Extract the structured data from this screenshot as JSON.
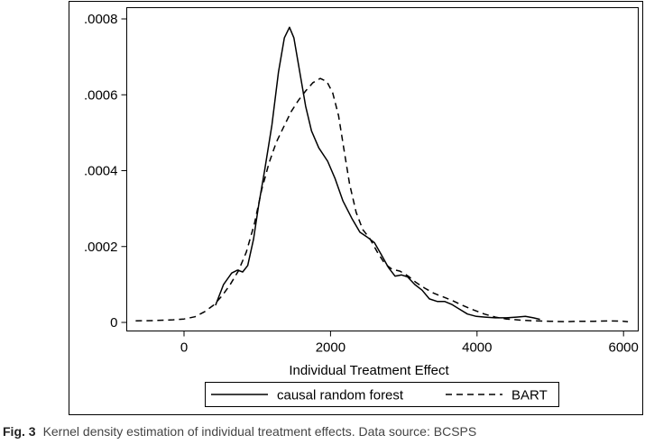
{
  "caption": {
    "label": "Fig. 3",
    "text": "Kernel density estimation of individual treatment effects. Data source: BCSPS"
  },
  "chart_data": {
    "type": "line",
    "title": "",
    "xlabel": "Individual Treatment Effect",
    "ylabel": "",
    "xlim": [
      -650,
      6100
    ],
    "ylim": [
      0,
      0.0008
    ],
    "x_ticks": [
      0,
      2000,
      4000,
      6000
    ],
    "x_tick_labels": [
      "0",
      "2000",
      "4000",
      "6000"
    ],
    "y_ticks": [
      0,
      0.0002,
      0.0004,
      0.0006,
      0.0008
    ],
    "y_tick_labels": [
      "0",
      ".0002",
      ".0004",
      ".0006",
      ".0008"
    ],
    "grid": false,
    "legend_position": "bottom",
    "series": [
      {
        "name": "causal random forest",
        "style": "solid",
        "color": "#000000",
        "points": [
          [
            430,
            4.5e-05
          ],
          [
            540,
            0.0001
          ],
          [
            650,
            0.00013
          ],
          [
            730,
            0.000138
          ],
          [
            800,
            0.000133
          ],
          [
            870,
            0.00015
          ],
          [
            950,
            0.00022
          ],
          [
            1020,
            0.00031
          ],
          [
            1100,
            0.0004
          ],
          [
            1200,
            0.00052
          ],
          [
            1290,
            0.00066
          ],
          [
            1370,
            0.00075
          ],
          [
            1440,
            0.000778
          ],
          [
            1500,
            0.00075
          ],
          [
            1580,
            0.00066
          ],
          [
            1660,
            0.00057
          ],
          [
            1740,
            0.000505
          ],
          [
            1840,
            0.00046
          ],
          [
            1960,
            0.000425
          ],
          [
            2060,
            0.00038
          ],
          [
            2170,
            0.00032
          ],
          [
            2290,
            0.000275
          ],
          [
            2400,
            0.000238
          ],
          [
            2500,
            0.000225
          ],
          [
            2600,
            0.00021
          ],
          [
            2690,
            0.00018
          ],
          [
            2790,
            0.000145
          ],
          [
            2880,
            0.000122
          ],
          [
            2970,
            0.000125
          ],
          [
            3050,
            0.00012
          ],
          [
            3150,
            0.0001
          ],
          [
            3250,
            8.5e-05
          ],
          [
            3350,
            6.2e-05
          ],
          [
            3460,
            5.5e-05
          ],
          [
            3560,
            5.5e-05
          ],
          [
            3660,
            4.7e-05
          ],
          [
            3760,
            3.5e-05
          ],
          [
            3870,
            2.2e-05
          ],
          [
            3990,
            1.6e-05
          ],
          [
            4110,
            1.4e-05
          ],
          [
            4250,
            1.2e-05
          ],
          [
            4400,
            1.2e-05
          ],
          [
            4540,
            1.4e-05
          ],
          [
            4660,
            1.6e-05
          ],
          [
            4770,
            1.2e-05
          ],
          [
            4860,
            8e-06
          ]
        ]
      },
      {
        "name": "BART",
        "style": "dashed",
        "color": "#000000",
        "points": [
          [
            -660,
            4e-06
          ],
          [
            -400,
            5e-06
          ],
          [
            -150,
            7e-06
          ],
          [
            0,
            9e-06
          ],
          [
            150,
            1.5e-05
          ],
          [
            280,
            2.8e-05
          ],
          [
            400,
            4.5e-05
          ],
          [
            520,
            7e-05
          ],
          [
            630,
            0.0001
          ],
          [
            740,
            0.000135
          ],
          [
            850,
            0.000185
          ],
          [
            960,
            0.00026
          ],
          [
            1060,
            0.00035
          ],
          [
            1160,
            0.00042
          ],
          [
            1260,
            0.000475
          ],
          [
            1360,
            0.000515
          ],
          [
            1460,
            0.000555
          ],
          [
            1560,
            0.000585
          ],
          [
            1660,
            0.00061
          ],
          [
            1760,
            0.000632
          ],
          [
            1860,
            0.000643
          ],
          [
            1950,
            0.000635
          ],
          [
            2030,
            0.000605
          ],
          [
            2110,
            0.000545
          ],
          [
            2180,
            0.00046
          ],
          [
            2260,
            0.000365
          ],
          [
            2350,
            0.00029
          ],
          [
            2440,
            0.000245
          ],
          [
            2540,
            0.00022
          ],
          [
            2640,
            0.000185
          ],
          [
            2740,
            0.000155
          ],
          [
            2840,
            0.00014
          ],
          [
            2950,
            0.000135
          ],
          [
            3060,
            0.000122
          ],
          [
            3170,
            0.000105
          ],
          [
            3290,
            9e-05
          ],
          [
            3410,
            7.7e-05
          ],
          [
            3530,
            6.8e-05
          ],
          [
            3660,
            5.8e-05
          ],
          [
            3800,
            4.5e-05
          ],
          [
            3950,
            3.3e-05
          ],
          [
            4100,
            2.2e-05
          ],
          [
            4250,
            1.4e-05
          ],
          [
            4400,
            9e-06
          ],
          [
            4600,
            6e-06
          ],
          [
            4800,
            4e-06
          ],
          [
            5000,
            3e-06
          ],
          [
            5200,
            2e-06
          ],
          [
            5400,
            3e-06
          ],
          [
            5600,
            3e-06
          ],
          [
            5800,
            4e-06
          ],
          [
            6000,
            3e-06
          ],
          [
            6060,
            2e-06
          ]
        ]
      }
    ]
  }
}
